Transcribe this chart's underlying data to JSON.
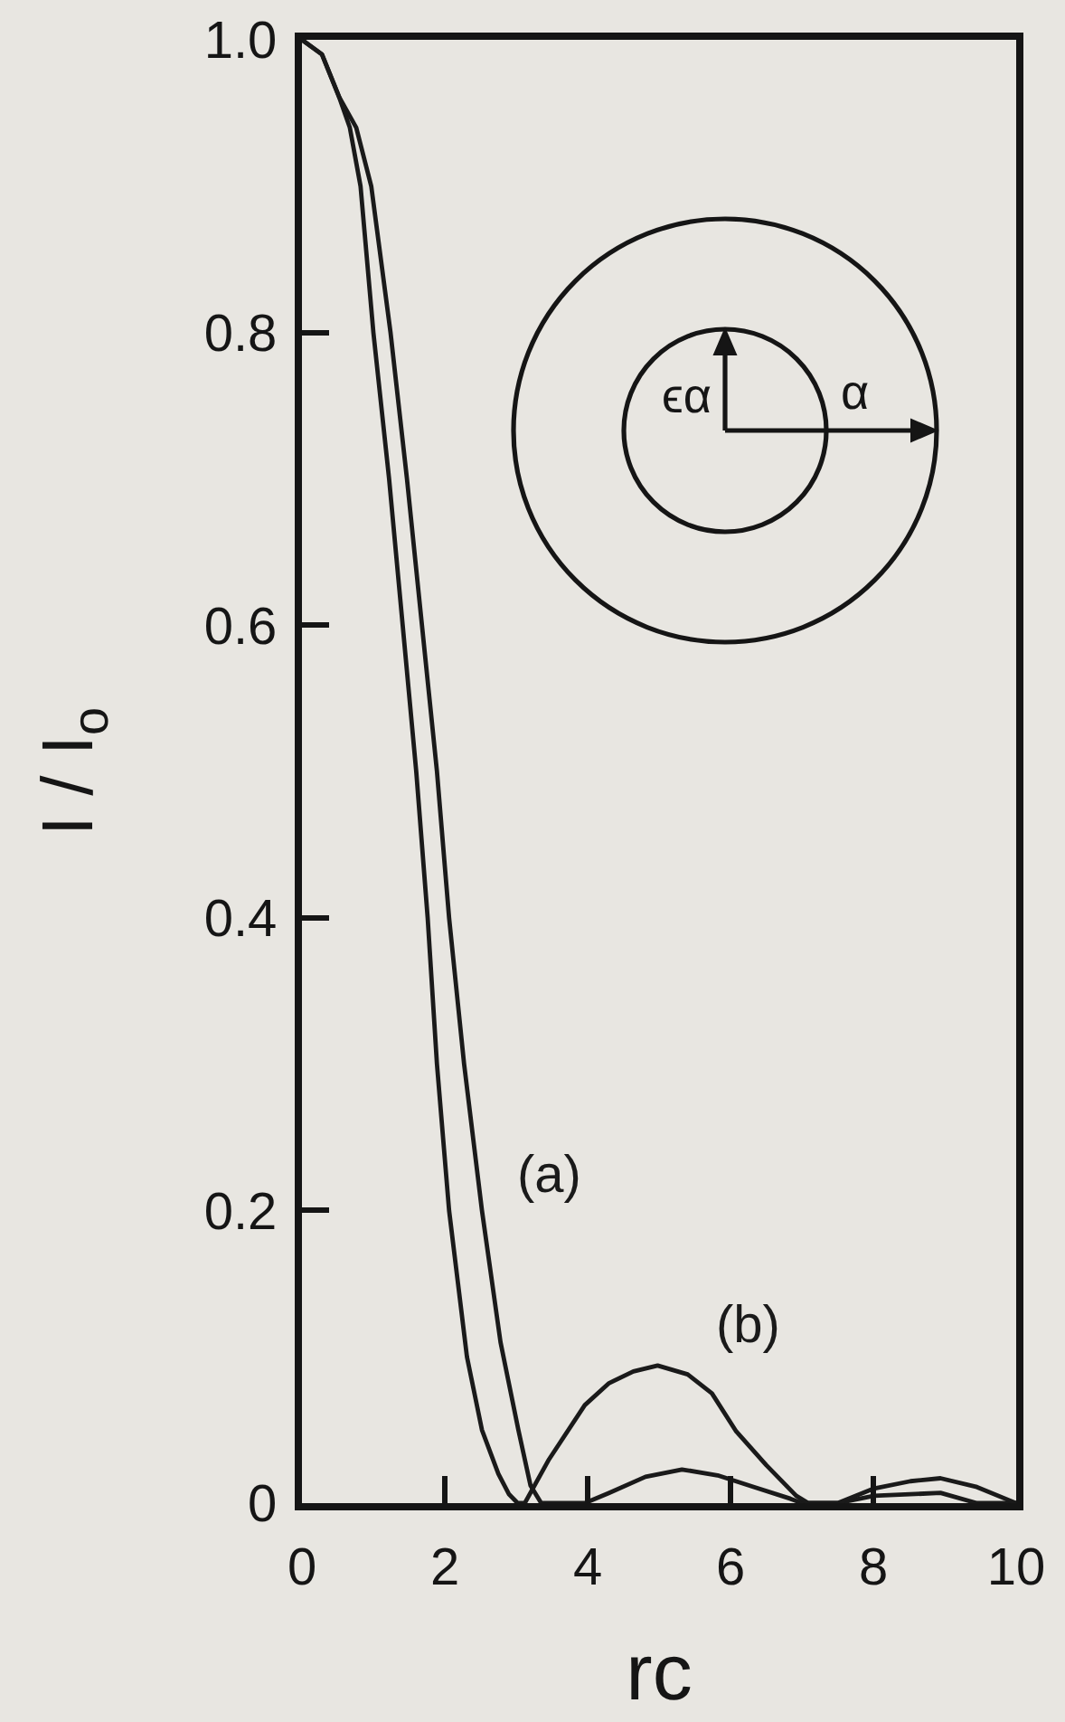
{
  "chart_data": {
    "type": "line",
    "xlabel": "rc",
    "ylabel": "I / I$_{o}$",
    "xlim": [
      0,
      10
    ],
    "ylim": [
      0,
      1
    ],
    "xticks": [
      0,
      2,
      4,
      6,
      8,
      10
    ],
    "yticks": [
      0,
      0.2,
      0.4,
      0.6,
      0.8,
      {
        "value": 1,
        "label": "1.0"
      }
    ],
    "series": [
      {
        "name": "(a)",
        "color": "#1a1a1a",
        "x": [
          0,
          0.28,
          0.52,
          0.76,
          0.97,
          1.24,
          1.47,
          1.68,
          1.89,
          2.06,
          2.27,
          2.52,
          2.78,
          3.03,
          3.2,
          3.35,
          3.96,
          4.3,
          4.81,
          5.32,
          5.82,
          6.33,
          6.84,
          7.0,
          7.5,
          8.01,
          8.94,
          9.45,
          10
        ],
        "values": [
          1,
          0.99,
          0.961,
          0.94,
          0.9,
          0.8,
          0.7,
          0.6,
          0.5,
          0.4,
          0.3,
          0.2,
          0.11,
          0.05,
          0.012,
          0,
          0,
          0.007,
          0.018,
          0.023,
          0.019,
          0.011,
          0.003,
          0,
          0,
          0.005,
          0.007,
          0,
          0
        ]
      },
      {
        "name": "(b)",
        "color": "#1a1a1a",
        "x": [
          0,
          0.28,
          0.52,
          0.67,
          0.82,
          1.0,
          1.22,
          1.41,
          1.6,
          1.76,
          1.89,
          2.06,
          2.31,
          2.52,
          2.75,
          2.9,
          3.02,
          3.12,
          3.46,
          3.96,
          4.3,
          4.64,
          4.98,
          5.4,
          5.74,
          6.08,
          6.5,
          6.92,
          7.09,
          7.5,
          8.01,
          8.52,
          8.94,
          9.45,
          10
        ],
        "values": [
          1,
          0.99,
          0.961,
          0.94,
          0.9,
          0.8,
          0.7,
          0.6,
          0.5,
          0.4,
          0.3,
          0.2,
          0.1,
          0.05,
          0.02,
          0.006,
          0,
          0,
          0.03,
          0.067,
          0.082,
          0.09,
          0.094,
          0.088,
          0.075,
          0.049,
          0.026,
          0.005,
          0,
          0,
          0.01,
          0.015,
          0.017,
          0.011,
          0
        ]
      }
    ],
    "annotations": [
      "ϵα",
      "α"
    ]
  }
}
